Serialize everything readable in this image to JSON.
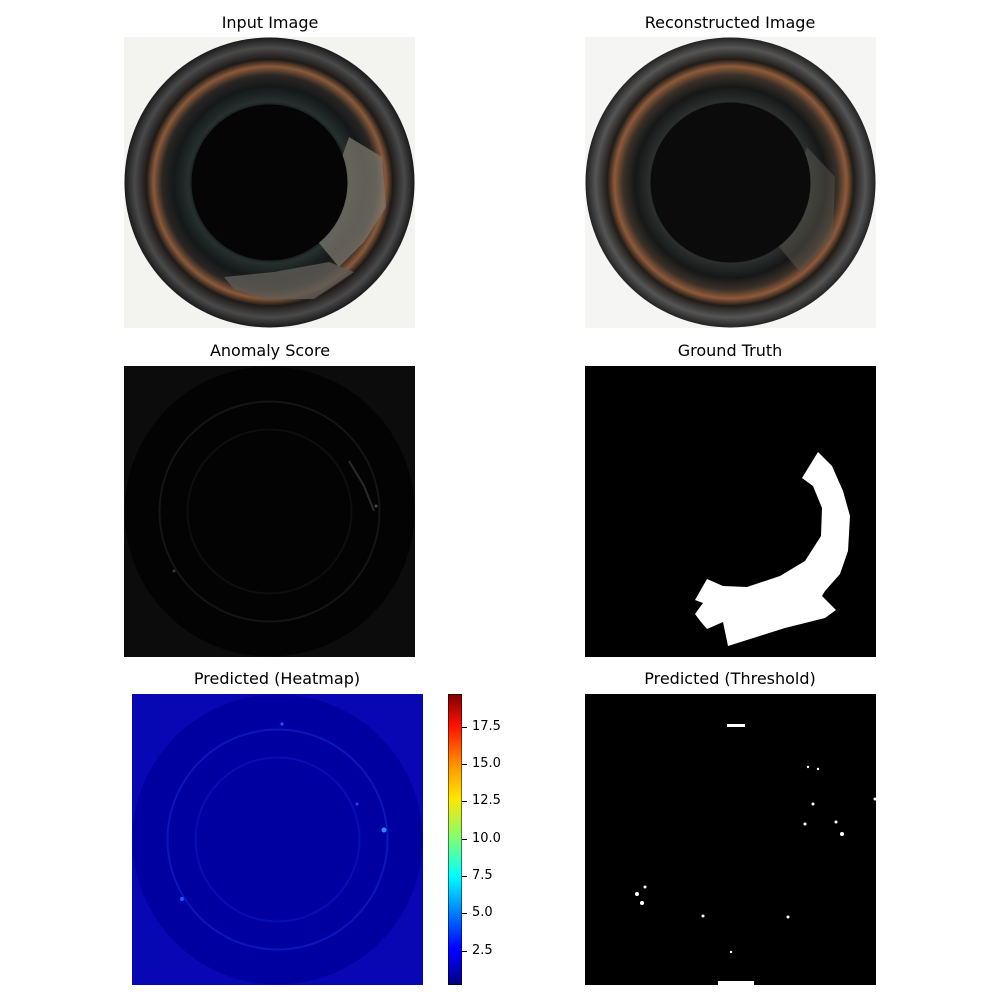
{
  "panels": {
    "input": {
      "title": "Input Image"
    },
    "reconstructed": {
      "title": "Reconstructed Image"
    },
    "anomaly": {
      "title": "Anomaly Score"
    },
    "ground_truth": {
      "title": "Ground Truth"
    },
    "heatmap": {
      "title": "Predicted (Heatmap)"
    },
    "threshold": {
      "title": "Predicted (Threshold)"
    }
  },
  "colors": {
    "background": "#ffffff",
    "bottle_dark": "#0b0b0b",
    "rim_orange": "#b0643a",
    "heatmap_base": "#0a0ab4",
    "mask": "#ffffff"
  },
  "chart_data": {
    "type": "heatmap",
    "colormap": "jet",
    "colorbar": {
      "ticks": [
        2.5,
        5.0,
        7.5,
        10.0,
        12.5,
        15.0,
        17.5
      ],
      "tick_labels": [
        "2.5",
        "5.0",
        "7.5",
        "10.0",
        "12.5",
        "15.0",
        "17.5"
      ],
      "range": [
        0.2,
        19.7
      ]
    }
  }
}
